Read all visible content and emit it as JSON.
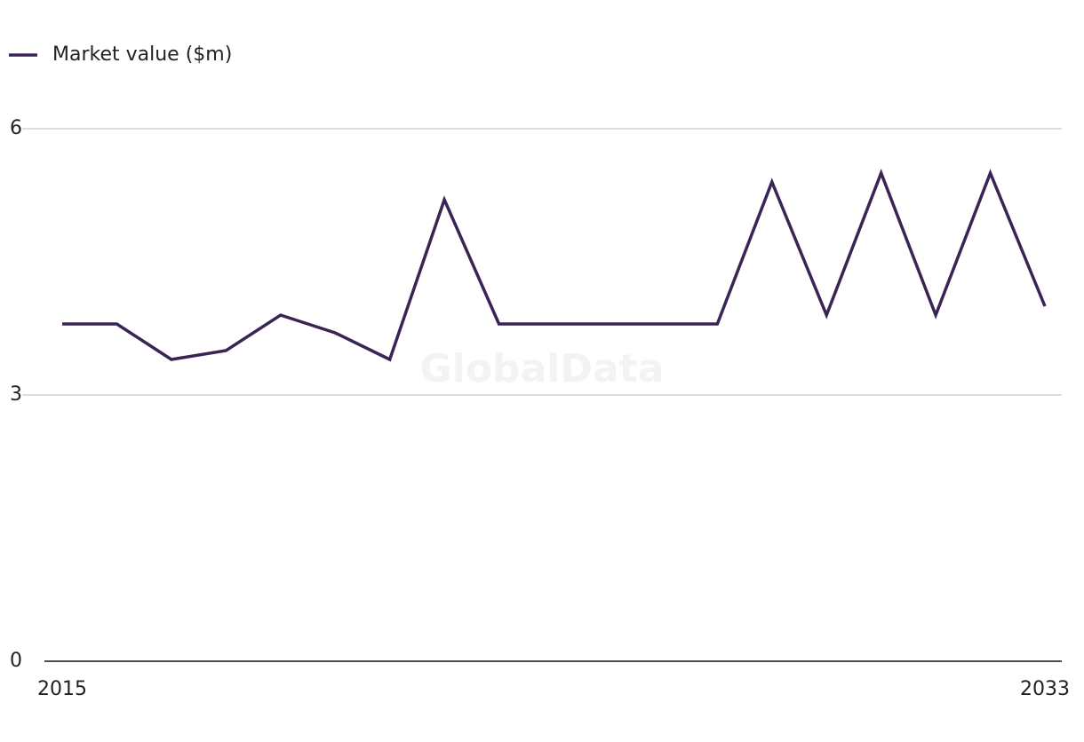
{
  "chart_data": {
    "type": "line",
    "watermark": "GlobalData",
    "x": [
      2015,
      2016,
      2017,
      2018,
      2019,
      2020,
      2021,
      2022,
      2023,
      2024,
      2025,
      2026,
      2027,
      2028,
      2029,
      2030,
      2031,
      2032,
      2033
    ],
    "series": [
      {
        "name": "Market value ($m)",
        "color": "#3a2456",
        "values": [
          3.8,
          3.8,
          3.4,
          3.5,
          3.9,
          3.7,
          3.4,
          5.2,
          3.8,
          3.8,
          3.8,
          3.8,
          3.8,
          5.4,
          3.9,
          5.5,
          3.9,
          5.5,
          4.0
        ]
      }
    ],
    "xlim": [
      2015,
      2033
    ],
    "xticks": [
      2015,
      2033
    ],
    "ylim": [
      0,
      6
    ],
    "yticks": [
      0,
      3,
      6
    ],
    "grid": true,
    "legend": "top-left"
  }
}
